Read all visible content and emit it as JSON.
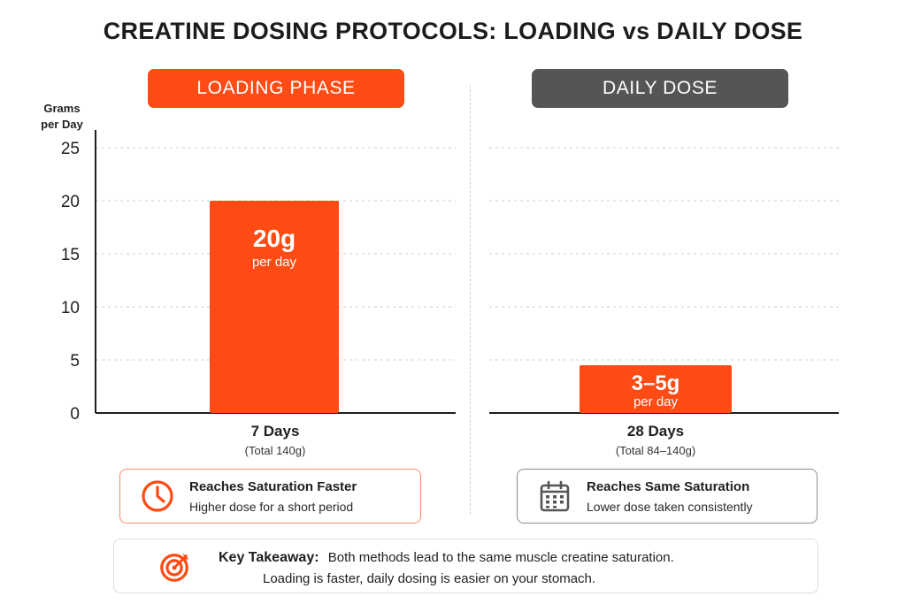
{
  "title": "CREATINE DOSING PROTOCOLS: LOADING vs DAILY DOSE",
  "colors": {
    "accent": "#ff4b14",
    "neutral": "#555555",
    "axis": "#1f1f1f"
  },
  "chart_data": [
    {
      "type": "bar",
      "panel": "LOADING PHASE",
      "ylabel": "Grams per Day",
      "ylim": [
        0,
        25
      ],
      "yticks": [
        0,
        5,
        10,
        15,
        20,
        25
      ],
      "grid": true,
      "categories": [
        "7 Days"
      ],
      "category_sub": [
        "(Total 140g)"
      ],
      "values": [
        20
      ],
      "bar_labels": [
        {
          "main": "20g",
          "sub": "per day"
        }
      ],
      "color": "#ff4b14"
    },
    {
      "type": "bar",
      "panel": "DAILY DOSE",
      "ylim": [
        0,
        25
      ],
      "grid": true,
      "categories": [
        "28 Days"
      ],
      "category_sub": [
        "(Total 84–140g)"
      ],
      "values": [
        4.5
      ],
      "bar_labels": [
        {
          "main": "3–5g",
          "sub": "per day"
        }
      ],
      "color": "#ff4b14"
    }
  ],
  "info": {
    "loading": {
      "icon": "clock-icon",
      "title": "Reaches Saturation Faster",
      "desc": "Higher dose for a short period"
    },
    "daily": {
      "icon": "calendar-icon",
      "title": "Reaches Same Saturation",
      "desc": "Lower dose taken consistently"
    }
  },
  "takeaway": {
    "icon": "target-icon",
    "label": "Key Takeaway:",
    "line1": "Both methods lead to the same muscle creatine saturation.",
    "line2": "Loading is faster, daily dosing is easier on your stomach."
  }
}
